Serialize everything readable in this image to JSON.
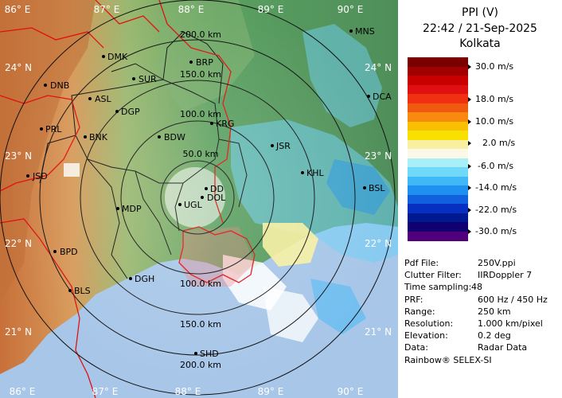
{
  "header": {
    "product": "PPI (V)",
    "datetime": "22:42 / 21-Sep-2025",
    "station": "Kolkata"
  },
  "color_scale": {
    "labels": [
      "30.0 m/s",
      "18.0 m/s",
      "10.0 m/s",
      "2.0 m/s",
      "-6.0 m/s",
      "-14.0 m/s",
      "-22.0 m/s",
      "-30.0 m/s"
    ],
    "colors": [
      "#7a0000",
      "#a00000",
      "#c80000",
      "#e01010",
      "#f03010",
      "#f05a10",
      "#f88a10",
      "#f8c000",
      "#f8e000",
      "#f8f0a0",
      "#fcf8e8",
      "#a8f0f8",
      "#70d8f8",
      "#40b8f8",
      "#2090f0",
      "#1060e0",
      "#0830c0",
      "#001890",
      "#100070",
      "#50007a"
    ]
  },
  "info": [
    {
      "key": "Pdf File:",
      "value": "250V.ppi"
    },
    {
      "key": "Clutter Filter:",
      "value": "IIRDoppler 7"
    },
    {
      "key": "Time sampling:",
      "value": "48"
    },
    {
      "key": "PRF:",
      "value": "600 Hz / 450 Hz"
    },
    {
      "key": "Range:",
      "value": "250 km"
    },
    {
      "key": "Resolution:",
      "value": "1.000 km/pixel"
    },
    {
      "key": "Elevation:",
      "value": "0.2 deg"
    },
    {
      "key": "Data:",
      "value": "Radar Data"
    }
  ],
  "footer": "Rainbow® SELEX-SI",
  "map": {
    "lon_top": [
      "86° E",
      "87° E",
      "88° E",
      "89° E",
      "90° E"
    ],
    "lon_bottom": [
      "86° E",
      "87° E",
      "88° E",
      "89° E",
      "90° E"
    ],
    "lat_left": [
      "24° N",
      "23° N",
      "22° N",
      "21° N"
    ],
    "lat_right": [
      "24° N",
      "23° N",
      "22° N",
      "21° N"
    ],
    "range_rings": [
      "200.0 km",
      "150.0 km",
      "100.0 km",
      "50.0 km",
      "100.0 km",
      "150.0 km",
      "200.0 km"
    ],
    "stations": [
      "MNS",
      "DMK",
      "BRP",
      "DNB",
      "SUR",
      "ASL",
      "DGP",
      "DCA",
      "PRL",
      "KRG",
      "BNK",
      "BDW",
      "JSR",
      "JSD",
      "KHL",
      "DD",
      "BSL",
      "DOL",
      "MDP",
      "UGL",
      "BPD",
      "DGH",
      "BLS",
      "SHD"
    ]
  }
}
